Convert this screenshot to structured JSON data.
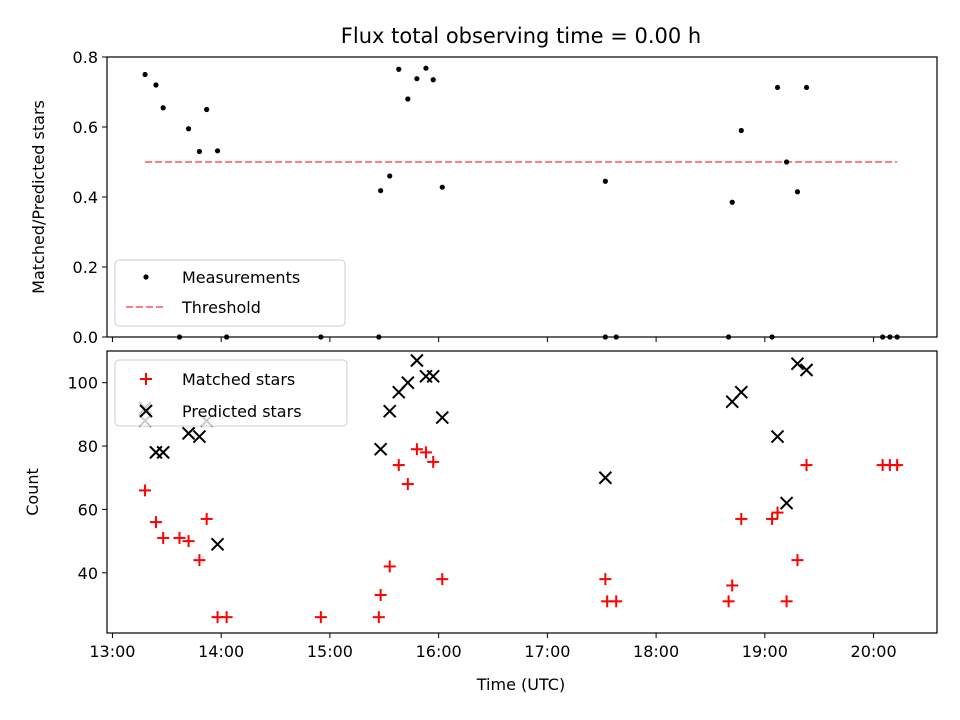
{
  "chart_data": [
    {
      "type": "scatter",
      "title": "Flux total observing time = 0.00 h",
      "xlabel": "",
      "ylabel": "Matched/Predicted stars",
      "xlim": [
        "12:57",
        "20:35"
      ],
      "ylim": [
        0,
        0.8
      ],
      "yticks": [
        0,
        0.2,
        0.4,
        0.6,
        0.8
      ],
      "ytick_labels": [
        "0.0",
        "0.2",
        "0.4",
        "0.6",
        "0.8"
      ],
      "legend_position": "lower-left",
      "series": [
        {
          "name": "Measurements",
          "marker": "dot",
          "color": "#000000",
          "points": [
            [
              "13:18",
              0.75
            ],
            [
              "13:24",
              0.72
            ],
            [
              "13:28",
              0.655
            ],
            [
              "13:37",
              0.0
            ],
            [
              "13:42",
              0.595
            ],
            [
              "13:48",
              0.53
            ],
            [
              "13:52",
              0.65
            ],
            [
              "13:58",
              0.532
            ],
            [
              "14:03",
              0.0
            ],
            [
              "14:55",
              0.0
            ],
            [
              "15:27",
              0.0
            ],
            [
              "15:28",
              0.418
            ],
            [
              "15:33",
              0.46
            ],
            [
              "15:38",
              0.765
            ],
            [
              "15:43",
              0.68
            ],
            [
              "15:48",
              0.738
            ],
            [
              "15:53",
              0.768
            ],
            [
              "15:57",
              0.735
            ],
            [
              "16:02",
              0.428
            ],
            [
              "17:32",
              0.0
            ],
            [
              "17:32",
              0.445
            ],
            [
              "17:38",
              0.0
            ],
            [
              "18:40",
              0.0
            ],
            [
              "18:42",
              0.385
            ],
            [
              "18:47",
              0.59
            ],
            [
              "19:04",
              0.0
            ],
            [
              "19:07",
              0.713
            ],
            [
              "19:12",
              0.5
            ],
            [
              "19:18",
              0.415
            ],
            [
              "19:23",
              0.713
            ],
            [
              "20:05",
              0.0
            ],
            [
              "20:09",
              0.0
            ],
            [
              "20:13",
              0.0
            ]
          ]
        },
        {
          "name": "Threshold",
          "style": "dashed",
          "color": "#ff7f7f",
          "x": [
            "13:18",
            "20:13"
          ],
          "y": [
            0.5,
            0.5
          ]
        }
      ]
    },
    {
      "type": "scatter",
      "title": "",
      "xlabel": "Time (UTC)",
      "ylabel": "Count",
      "xlim": [
        "12:57",
        "20:35"
      ],
      "ylim": [
        21,
        110
      ],
      "yticks": [
        40,
        60,
        80,
        100
      ],
      "ytick_labels": [
        "40",
        "60",
        "80",
        "100"
      ],
      "xticks": [
        "13:00",
        "14:00",
        "15:00",
        "16:00",
        "17:00",
        "18:00",
        "19:00",
        "20:00"
      ],
      "xtick_labels": [
        "13:00",
        "14:00",
        "15:00",
        "16:00",
        "17:00",
        "18:00",
        "19:00",
        "20:00"
      ],
      "legend_position": "upper-left",
      "series": [
        {
          "name": "Matched stars",
          "marker": "plus",
          "color": "#ff0000",
          "points": [
            [
              "13:18",
              66
            ],
            [
              "13:24",
              56
            ],
            [
              "13:28",
              51
            ],
            [
              "13:37",
              51
            ],
            [
              "13:42",
              50
            ],
            [
              "13:48",
              44
            ],
            [
              "13:52",
              57
            ],
            [
              "13:58",
              26
            ],
            [
              "14:03",
              26
            ],
            [
              "14:55",
              26
            ],
            [
              "15:27",
              26
            ],
            [
              "15:28",
              33
            ],
            [
              "15:33",
              42
            ],
            [
              "15:38",
              74
            ],
            [
              "15:43",
              68
            ],
            [
              "15:48",
              79
            ],
            [
              "15:53",
              78
            ],
            [
              "15:57",
              75
            ],
            [
              "16:02",
              38
            ],
            [
              "17:32",
              38
            ],
            [
              "17:33",
              31
            ],
            [
              "17:38",
              31
            ],
            [
              "18:40",
              31
            ],
            [
              "18:42",
              36
            ],
            [
              "18:47",
              57
            ],
            [
              "19:04",
              57
            ],
            [
              "19:07",
              59
            ],
            [
              "19:12",
              31
            ],
            [
              "19:18",
              44
            ],
            [
              "19:23",
              74
            ],
            [
              "20:05",
              74
            ],
            [
              "20:09",
              74
            ],
            [
              "20:13",
              74
            ]
          ]
        },
        {
          "name": "Predicted stars",
          "marker": "x",
          "color": "#000000",
          "points": [
            [
              "13:18",
              88
            ],
            [
              "13:18",
              92
            ],
            [
              "13:24",
              78
            ],
            [
              "13:28",
              78
            ],
            [
              "13:42",
              84
            ],
            [
              "13:48",
              83
            ],
            [
              "13:52",
              88
            ],
            [
              "13:58",
              49
            ],
            [
              "15:28",
              79
            ],
            [
              "15:33",
              91
            ],
            [
              "15:38",
              97
            ],
            [
              "15:43",
              100
            ],
            [
              "15:48",
              107
            ],
            [
              "15:53",
              102
            ],
            [
              "15:57",
              102
            ],
            [
              "16:02",
              89
            ],
            [
              "17:32",
              70
            ],
            [
              "18:42",
              94
            ],
            [
              "18:47",
              97
            ],
            [
              "19:07",
              83
            ],
            [
              "19:12",
              62
            ],
            [
              "19:18",
              106
            ],
            [
              "19:23",
              104
            ]
          ]
        }
      ]
    }
  ]
}
